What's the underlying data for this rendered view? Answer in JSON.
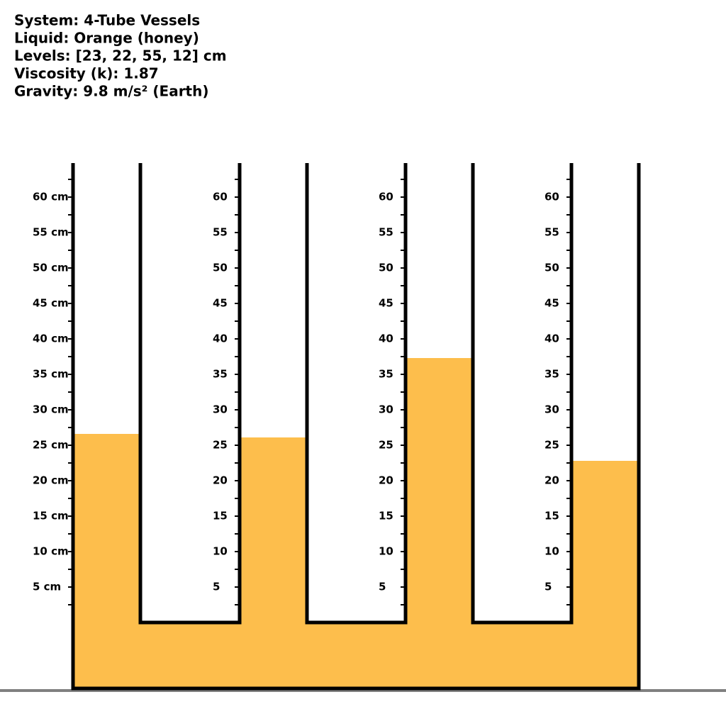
{
  "header": {
    "lines": [
      "System: 4-Tube Vessels",
      "Liquid: Orange (honey)",
      "Levels: [23, 22, 55, 12] cm",
      "Viscosity (k): 1.87",
      "Gravity: 9.8 m/s² (Earth)"
    ]
  },
  "vessel": {
    "ylim": [
      0,
      65
    ],
    "liquid_color": "#fdbe4c",
    "minor_ticks": [
      62.5,
      57.5,
      52.5,
      47.5,
      42.5,
      37.5,
      32.5,
      27.5,
      22.5,
      17.5,
      12.5,
      7.5,
      2.5
    ],
    "tubes": [
      {
        "level": 26.6,
        "ticks": [
          {
            "value": 60,
            "label": "60 cm"
          },
          {
            "value": 55,
            "label": "55 cm"
          },
          {
            "value": 50,
            "label": "50 cm"
          },
          {
            "value": 45,
            "label": "45 cm"
          },
          {
            "value": 40,
            "label": "40 cm"
          },
          {
            "value": 35,
            "label": "35 cm"
          },
          {
            "value": 30,
            "label": "30 cm"
          },
          {
            "value": 25,
            "label": "25 cm"
          },
          {
            "value": 20,
            "label": "20 cm"
          },
          {
            "value": 15,
            "label": "15 cm"
          },
          {
            "value": 10,
            "label": "10 cm"
          },
          {
            "value": 5,
            "label": "5 cm"
          }
        ]
      },
      {
        "level": 26.1,
        "ticks": [
          60,
          55,
          50,
          45,
          40,
          35,
          30,
          25,
          20,
          15,
          10,
          5
        ]
      },
      {
        "level": 37.3,
        "ticks": [
          60,
          55,
          50,
          45,
          40,
          35,
          30,
          25,
          20,
          15,
          10,
          5
        ]
      },
      {
        "level": 22.8,
        "ticks": [
          60,
          55,
          50,
          45,
          40,
          35,
          30,
          25,
          20,
          15,
          10,
          5
        ]
      }
    ]
  }
}
